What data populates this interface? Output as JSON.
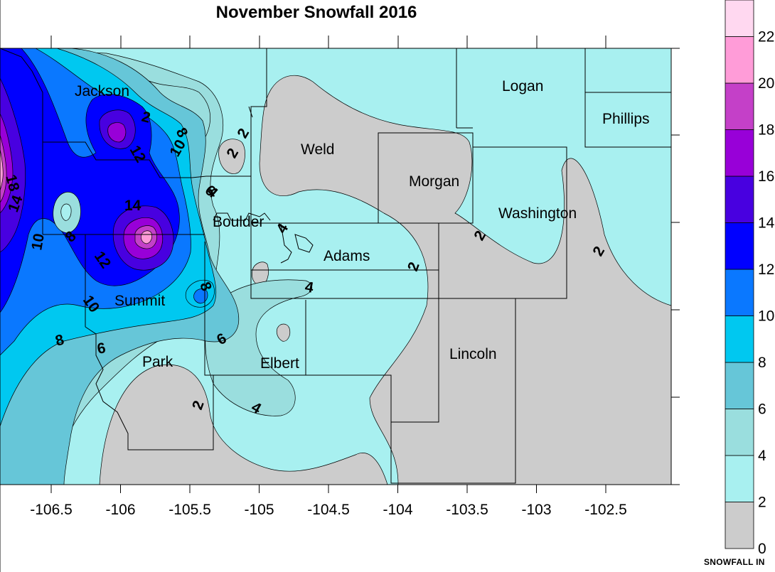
{
  "title": "November Snowfall 2016",
  "x_axis": {
    "ticks": [
      "-106.5",
      "-106",
      "-105.5",
      "-105",
      "-104.5",
      "-104",
      "-103.5",
      "-103",
      "-102.5"
    ],
    "values": [
      -106.5,
      -106,
      -105.5,
      -105,
      -104.5,
      -104,
      -103.5,
      -103,
      -102.5
    ]
  },
  "counties": [
    "Jackson",
    "Weld",
    "Logan",
    "Phillips",
    "Morgan",
    "Washington",
    "Boulder",
    "Adams",
    "Summit",
    "Park",
    "Elbert",
    "Lincoln"
  ],
  "contour_labels": [
    "18",
    "14",
    "10",
    "8",
    "12",
    "10",
    "8",
    "6",
    "4",
    "2",
    "2",
    "14",
    "8",
    "12",
    "10",
    "8",
    "6",
    "6",
    "4",
    "2",
    "4",
    "2",
    "2",
    "2"
  ],
  "legend": {
    "title": "SNOWFALL IN",
    "labels": [
      "0",
      "2",
      "4",
      "6",
      "8",
      "10",
      "12",
      "14",
      "16",
      "18",
      "20",
      "22"
    ],
    "colors": [
      "#cccccc",
      "#a8f0f0",
      "#9adede",
      "#66c6d8",
      "#00c8f0",
      "#0a78ff",
      "#0000ff",
      "#4800e0",
      "#9800d8",
      "#c440c8",
      "#ff9cd8",
      "#ffd8f0",
      "#ffe8f6"
    ]
  },
  "chart_data": {
    "type": "heatmap",
    "title": "November Snowfall 2016",
    "x_tick_labels": [
      "-106.5",
      "-106",
      "-105.5",
      "-105",
      "-104.5",
      "-104",
      "-103.5",
      "-103",
      "-102.5"
    ],
    "color_scale_title": "SNOWFALL IN",
    "color_scale_levels": [
      0,
      2,
      4,
      6,
      8,
      10,
      12,
      14,
      16,
      18,
      20,
      22
    ],
    "regions": [
      {
        "county": "Jackson",
        "approx_snowfall_in": [
          8,
          16
        ]
      },
      {
        "county": "Summit",
        "approx_snowfall_in": [
          10,
          14
        ]
      },
      {
        "county": "Boulder",
        "approx_snowfall_in": [
          2,
          8
        ]
      },
      {
        "county": "Weld",
        "approx_snowfall_in": [
          0,
          2
        ]
      },
      {
        "county": "Logan",
        "approx_snowfall_in": [
          2,
          4
        ]
      },
      {
        "county": "Phillips",
        "approx_snowfall_in": [
          2,
          4
        ]
      },
      {
        "county": "Morgan",
        "approx_snowfall_in": [
          0,
          2
        ]
      },
      {
        "county": "Washington",
        "approx_snowfall_in": [
          0,
          4
        ]
      },
      {
        "county": "Adams",
        "approx_snowfall_in": [
          2,
          4
        ]
      },
      {
        "county": "Park",
        "approx_snowfall_in": [
          0,
          6
        ]
      },
      {
        "county": "Elbert",
        "approx_snowfall_in": [
          2,
          6
        ]
      },
      {
        "county": "Lincoln",
        "approx_snowfall_in": [
          0,
          2
        ]
      }
    ],
    "maximum_label": "18"
  }
}
